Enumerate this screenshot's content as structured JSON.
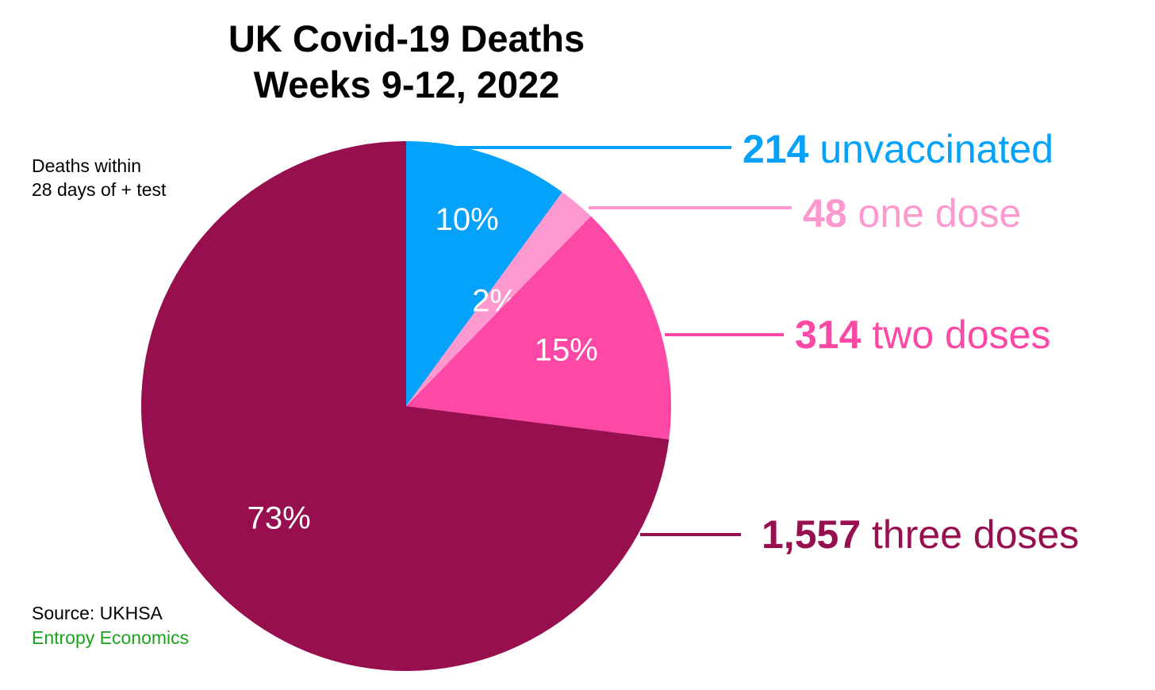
{
  "title": {
    "line1": "UK Covid-19 Deaths",
    "line2": "Weeks 9-12, 2022"
  },
  "note": {
    "line1": "Deaths within",
    "line2": "28 days of + test"
  },
  "source": "Source: UKHSA",
  "credit": "Entropy Economics",
  "colors": {
    "credit": "#1aa31a",
    "unvaccinated": "#04a2fb",
    "one_dose": "#fd99ce",
    "two_doses": "#fd48a5",
    "three_doses": "#970f4f"
  },
  "chart_data": {
    "type": "pie",
    "start_angle": "12 o'clock",
    "direction": "clockwise",
    "slices": [
      {
        "value": 214,
        "value_label": "214",
        "category": "unvaccinated",
        "percent_label": "10%",
        "color": "#04a2fb",
        "callout_color": "#04a2fb"
      },
      {
        "value": 48,
        "value_label": "48",
        "category": "one dose",
        "percent_label": "2%",
        "color": "#fd99ce",
        "callout_color": "#fd99ce"
      },
      {
        "value": 314,
        "value_label": "314",
        "category": "two doses",
        "percent_label": "15%",
        "color": "#fd48a5",
        "callout_color": "#fd48a5"
      },
      {
        "value": 1557,
        "value_label": "1,557",
        "category": "three doses",
        "percent_label": "73%",
        "color": "#970f4f",
        "callout_color": "#970f4f"
      }
    ]
  }
}
